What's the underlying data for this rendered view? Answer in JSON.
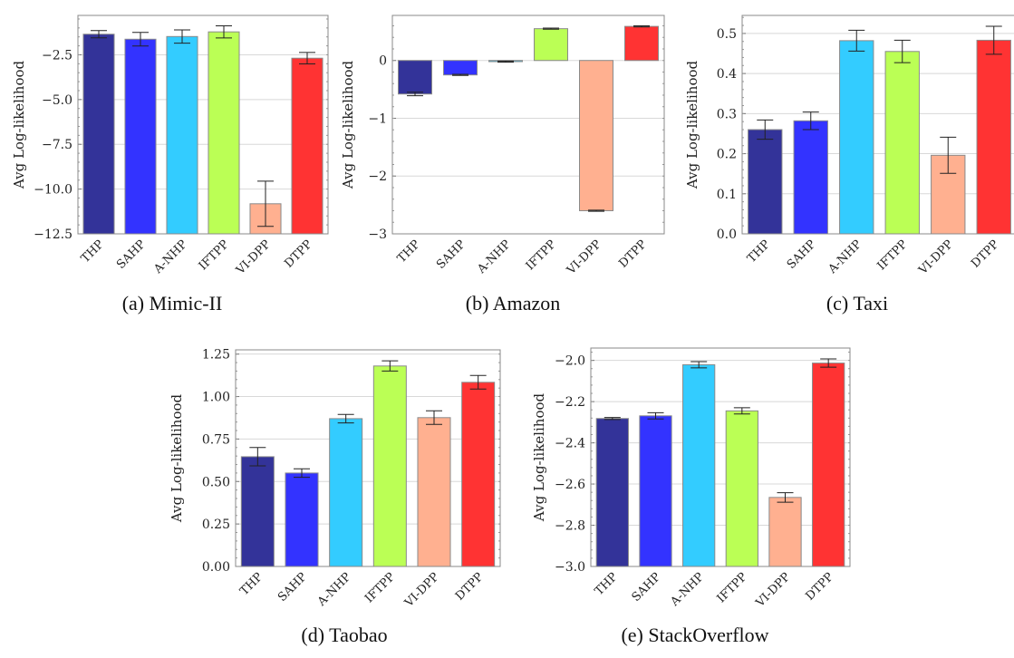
{
  "colors": {
    "THP": "#333399",
    "SAHP": "#3333ff",
    "A-NHP": "#33ccff",
    "IFTPP": "#bbff55",
    "VI-DPP": "#ffb090",
    "DTPP": "#ff3333"
  },
  "chart_data": [
    {
      "type": "bar",
      "caption": "(a) Mimic-II",
      "ylabel": "Avg Log-likelihood",
      "categories": [
        "THP",
        "SAHP",
        "A-NHP",
        "IFTPP",
        "VI-DPP",
        "DTPP"
      ],
      "values": [
        -1.35,
        -1.63,
        -1.48,
        -1.22,
        -10.82,
        -2.69
      ],
      "errors": [
        0.2,
        0.38,
        0.37,
        0.34,
        1.26,
        0.32
      ],
      "ylim": [
        -12.5,
        -0.3
      ],
      "yticks": [
        -2.5,
        -5.0,
        -7.5,
        -10.0,
        -12.5
      ],
      "ytick_labels": [
        "−2.5",
        "−5.0",
        "−7.5",
        "−10.0",
        "−12.5"
      ],
      "grid": true
    },
    {
      "type": "bar",
      "caption": "(b) Amazon",
      "ylabel": "Avg Log-likelihood",
      "categories": [
        "THP",
        "SAHP",
        "A-NHP",
        "IFTPP",
        "VI-DPP",
        "DTPP"
      ],
      "values": [
        -0.58,
        -0.25,
        -0.02,
        0.55,
        -2.6,
        0.59
      ],
      "errors": [
        0.03,
        0.01,
        0.01,
        0.01,
        0.01,
        0.01
      ],
      "ylim": [
        -3,
        0.78
      ],
      "yticks": [
        0,
        -1,
        -2,
        -3
      ],
      "ytick_labels": [
        "0",
        "−1",
        "−2",
        "−3"
      ],
      "grid": true
    },
    {
      "type": "bar",
      "caption": "(c) Taxi",
      "ylabel": "Avg Log-likelihood",
      "categories": [
        "THP",
        "SAHP",
        "A-NHP",
        "IFTPP",
        "VI-DPP",
        "DTPP"
      ],
      "values": [
        0.26,
        0.282,
        0.482,
        0.455,
        0.196,
        0.483
      ],
      "errors": [
        0.024,
        0.022,
        0.026,
        0.028,
        0.045,
        0.035
      ],
      "ylim": [
        0,
        0.545
      ],
      "yticks": [
        0.0,
        0.1,
        0.2,
        0.3,
        0.4,
        0.5
      ],
      "ytick_labels": [
        "0.0",
        "0.1",
        "0.2",
        "0.3",
        "0.4",
        "0.5"
      ],
      "grid": true
    },
    {
      "type": "bar",
      "caption": "(d) Taobao",
      "ylabel": "Avg Log-likelihood",
      "categories": [
        "THP",
        "SAHP",
        "A-NHP",
        "IFTPP",
        "VI-DPP",
        "DTPP"
      ],
      "values": [
        0.646,
        0.55,
        0.87,
        1.18,
        0.876,
        1.084
      ],
      "errors": [
        0.054,
        0.025,
        0.025,
        0.03,
        0.04,
        0.04
      ],
      "ylim": [
        0,
        1.275
      ],
      "yticks": [
        0,
        0.25,
        0.5,
        0.75,
        1.0,
        1.25
      ],
      "ytick_labels": [
        "0.00",
        "0.25",
        "0.50",
        "0.75",
        "1.00",
        "1.25"
      ],
      "grid": true
    },
    {
      "type": "bar",
      "caption": "(e) StackOverflow",
      "ylabel": "Avg Log-likelihood",
      "categories": [
        "THP",
        "SAHP",
        "A-NHP",
        "IFTPP",
        "VI-DPP",
        "DTPP"
      ],
      "values": [
        -2.282,
        -2.269,
        -2.021,
        -2.245,
        -2.665,
        -2.013
      ],
      "errors": [
        0.005,
        0.015,
        0.015,
        0.015,
        0.023,
        0.02
      ],
      "ylim": [
        -3.0,
        -1.94
      ],
      "yticks": [
        -2.0,
        -2.2,
        -2.4,
        -2.6,
        -2.8,
        -3.0
      ],
      "ytick_labels": [
        "−2.0",
        "−2.2",
        "−2.4",
        "−2.6",
        "−2.8",
        "−3.0"
      ],
      "grid": true
    }
  ]
}
